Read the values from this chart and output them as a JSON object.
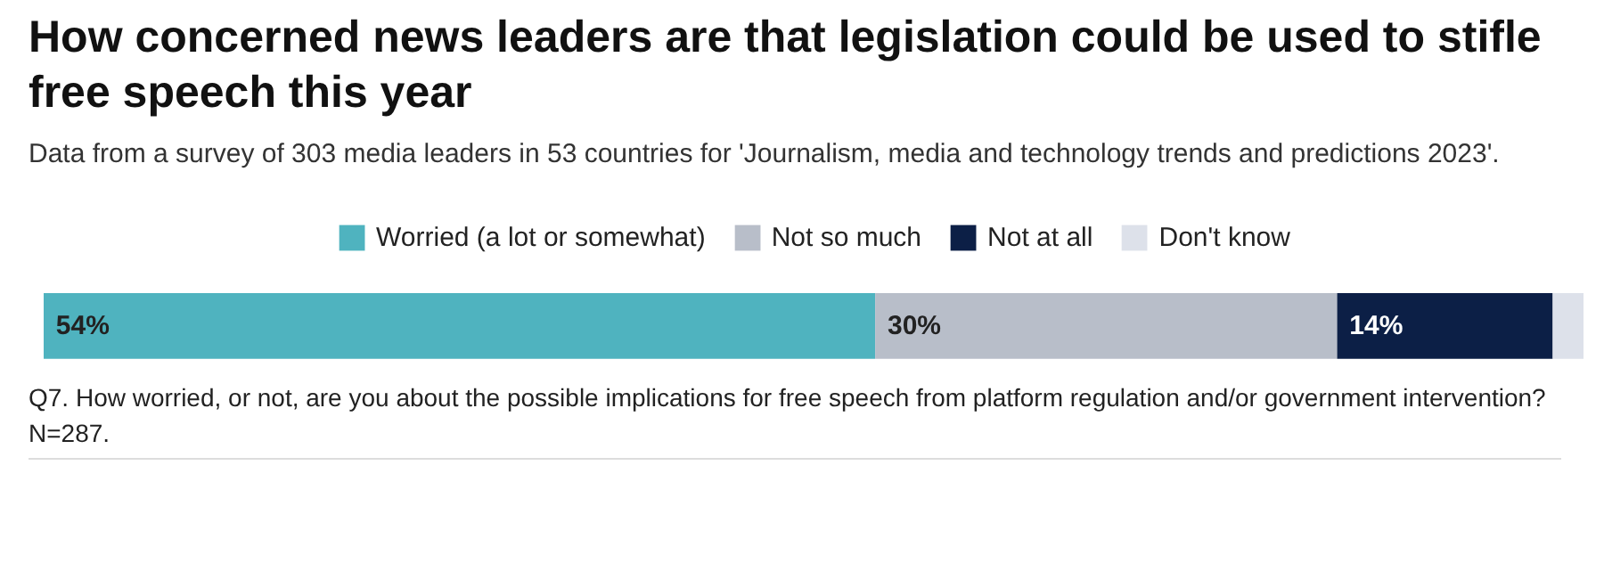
{
  "chart_data": {
    "type": "bar",
    "orientation": "horizontal",
    "stacked": true,
    "relative": false,
    "title": "How concerned news leaders are that legislation could be used to stifle free speech this year",
    "subtitle": "Data from a survey of 303 media leaders in 53 countries for 'Journalism, media and technology trends and predictions 2023'.",
    "annotations": [
      "Q7. How worried, or not, are you about the possible implications for free speech from platform regulation and/or government intervention? N=287."
    ],
    "categories": [
      null
    ],
    "xlim": [
      0,
      100
    ],
    "tick_labels": false,
    "grid": false,
    "legend": "top",
    "series": [
      {
        "name": "Worried (a lot or somewhat)",
        "color": "#4fb3bf",
        "values": [
          54
        ],
        "value_labels": [
          "54%"
        ]
      },
      {
        "name": "Not so much",
        "color": "#b8bec9",
        "values": [
          30
        ],
        "value_labels": [
          "30%"
        ]
      },
      {
        "name": "Not at all",
        "color": "#0c1f46",
        "values": [
          14
        ],
        "value_labels": [
          "14%"
        ]
      },
      {
        "name": "Don't know",
        "color": "#dde1ea",
        "values": [
          2
        ],
        "value_labels": [
          null
        ]
      }
    ]
  }
}
